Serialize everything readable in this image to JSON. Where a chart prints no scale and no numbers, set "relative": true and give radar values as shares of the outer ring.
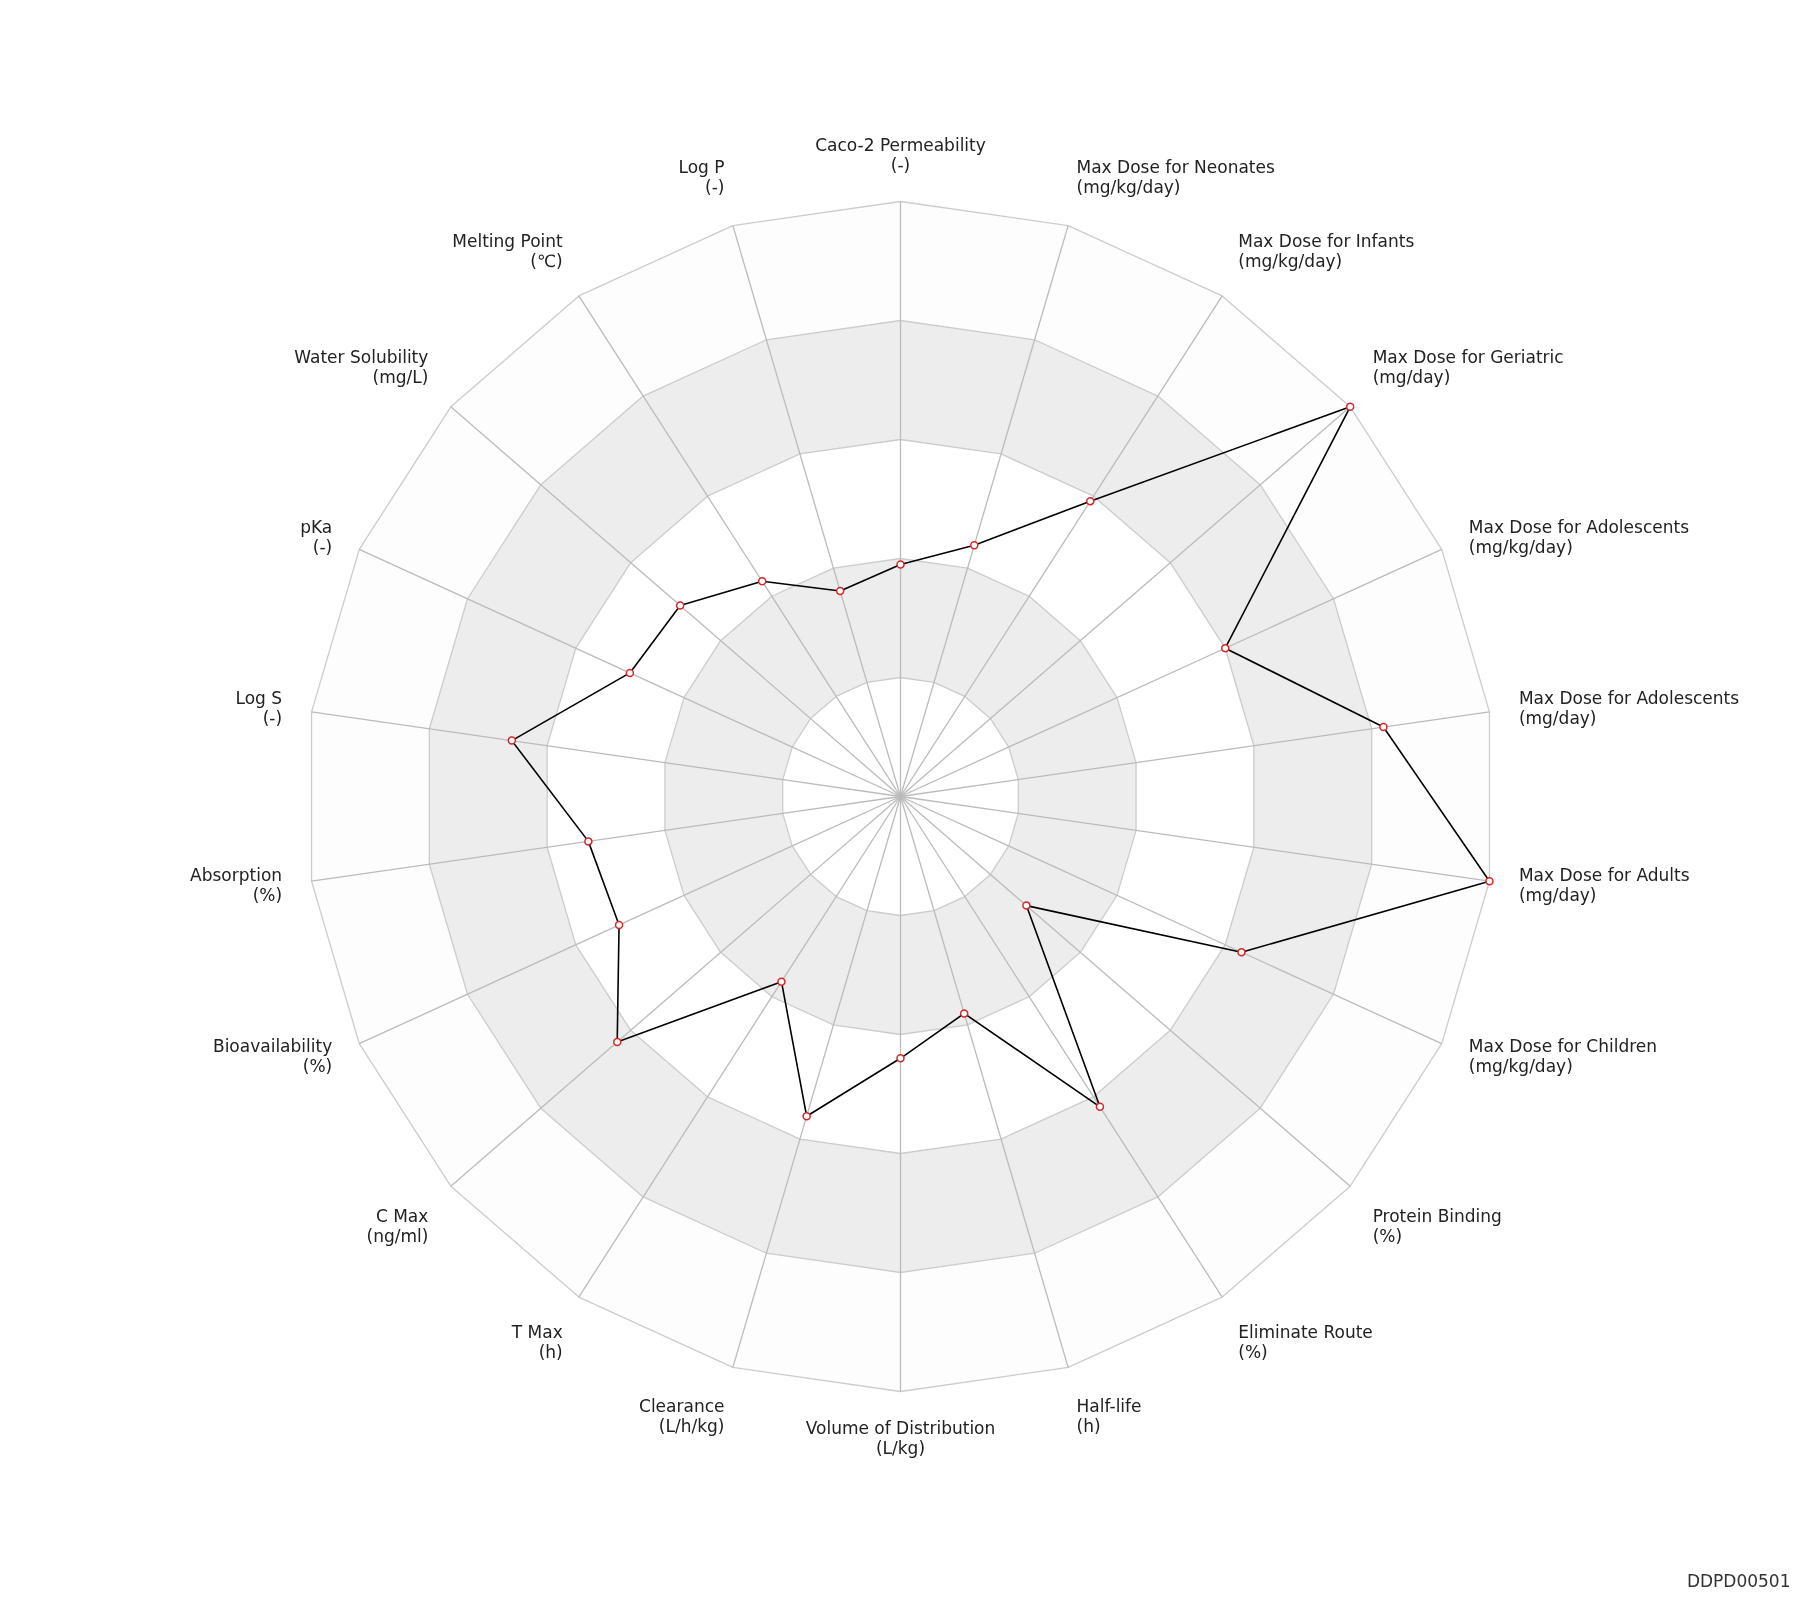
{
  "chart_data": {
    "type": "radar",
    "relative": true,
    "marker": "circle",
    "categories": [
      "Caco-2 Permeability\n(-)",
      "Max Dose for Neonates\n(mg/kg/day)",
      "Max Dose for Infants\n(mg/kg/day)",
      "Max Dose for Geriatric\n(mg/day)",
      "Max Dose for Adolescents\n(mg/kg/day)",
      "Max Dose for Adolescents\n(mg/day)",
      "Max Dose for Adults\n(mg/day)",
      "Max Dose for Children\n(mg/kg/day)",
      "Protein Binding\n(%)",
      "Eliminate Route\n(%)",
      "Half-life\n(h)",
      "Volume of Distribution\n(L/kg)",
      "Clearance\n(L/h/kg)",
      "T Max\n(h)",
      "C Max\n(ng/ml)",
      "Bioavailability\n(%)",
      "Absorption\n(%)",
      "Log S\n(-)",
      "pKa\n(-)",
      "Water Solubility\n(mg/L)",
      "Melting Point\n(℃)",
      "Log P\n(-)"
    ],
    "series": [
      {
        "color": "#000000",
        "values": [
          0.39,
          0.44,
          0.59,
          1.0,
          0.6,
          0.82,
          1.0,
          0.63,
          0.28,
          0.62,
          0.38,
          0.44,
          0.56,
          0.37,
          0.63,
          0.52,
          0.53,
          0.66,
          0.5,
          0.49,
          0.43,
          0.36
        ]
      }
    ],
    "annotations": [
      "DDPD00501"
    ]
  }
}
